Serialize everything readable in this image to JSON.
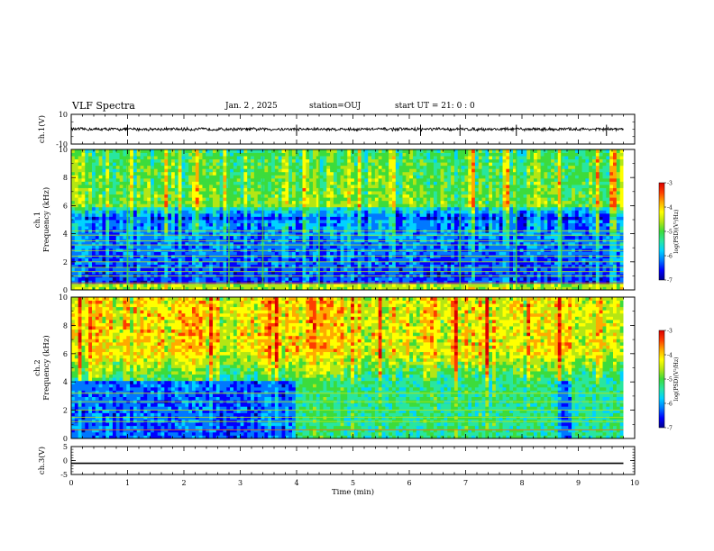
{
  "header": {
    "title": "VLF Spectra",
    "date": "Jan. 2 , 2025",
    "station": "station=OUJ",
    "start_ut": "start UT =  21: 0  : 0"
  },
  "colors": {
    "colormap": [
      "#00008c",
      "#0000ff",
      "#0078ff",
      "#00d2ff",
      "#28e6a0",
      "#3cdc3c",
      "#b4e614",
      "#ffff00",
      "#ffaa00",
      "#ff3c00",
      "#dc0000"
    ]
  },
  "chart_data": [
    {
      "type": "line",
      "name": "ch1-waveform",
      "ylabel": "ch.1(V)",
      "ylim": [
        -10,
        10
      ],
      "yticks": [
        "10",
        "-10"
      ],
      "xlim": [
        0,
        10
      ],
      "baseline": 0,
      "amplitude_typical": 1,
      "spikes_min": [
        1.0,
        4.0,
        6.2,
        6.9,
        7.9,
        9.5
      ]
    },
    {
      "type": "heatmap",
      "name": "ch1-spectrogram",
      "ylabel": "ch.1\nFrequency (kHz)",
      "ylim": [
        0,
        10
      ],
      "yticks": [
        "0",
        "2",
        "4",
        "6",
        "8",
        "10"
      ],
      "xlim": [
        0,
        10
      ],
      "x_end_min": 9.8,
      "colorbar": {
        "label": "log(PSD)(V²/Hz)",
        "range": [
          -7,
          -3
        ],
        "ticks": [
          "-3",
          "-4",
          "-5",
          "-6",
          "-7"
        ]
      },
      "description_levels": {
        "below_5kHz": -6.5,
        "above_6kHz": -4.8
      },
      "horizontal_lines_khz": [
        0.5,
        1.0,
        1.3,
        1.6,
        2.0,
        2.4,
        2.8,
        3.2,
        3.5,
        3.9,
        4.2
      ],
      "vertical_bursts_min": [
        1.0,
        2.8,
        3.4,
        4.4,
        6.9,
        7.9,
        8.7
      ]
    },
    {
      "type": "heatmap",
      "name": "ch2-spectrogram",
      "ylabel": "ch.2\nFrequency (kHz)",
      "ylim": [
        0,
        10
      ],
      "yticks": [
        "0",
        "2",
        "4",
        "6",
        "8",
        "10"
      ],
      "xlim": [
        0,
        10
      ],
      "x_end_min": 9.8,
      "colorbar": {
        "label": "log(PSD)(V²/Hz)",
        "range": [
          -7,
          -3
        ],
        "ticks": [
          "-3",
          "-4",
          "-5",
          "-6",
          "-7"
        ]
      },
      "description_levels": {
        "below_4kHz_before_4min": -6.3,
        "below_4kHz_after_4min": -5.3,
        "above_6kHz": -4.2
      },
      "regime_change_min": 4.0,
      "blue_gap_min": [
        8.65,
        8.9
      ],
      "horizontal_lines_khz": [
        0.6,
        1.2,
        1.5,
        2.0,
        2.6,
        3.2
      ]
    },
    {
      "type": "line",
      "name": "ch3-waveform",
      "ylabel": "ch.3(V)",
      "ylim": [
        -5,
        5
      ],
      "yticks": [
        "5",
        "0",
        "-5"
      ],
      "xlim": [
        0,
        10
      ],
      "xticks": [
        "0",
        "1",
        "2",
        "3",
        "4",
        "5",
        "6",
        "7",
        "8",
        "9",
        "10"
      ],
      "xlabel": "Time (min)",
      "constant_value": -1
    }
  ]
}
